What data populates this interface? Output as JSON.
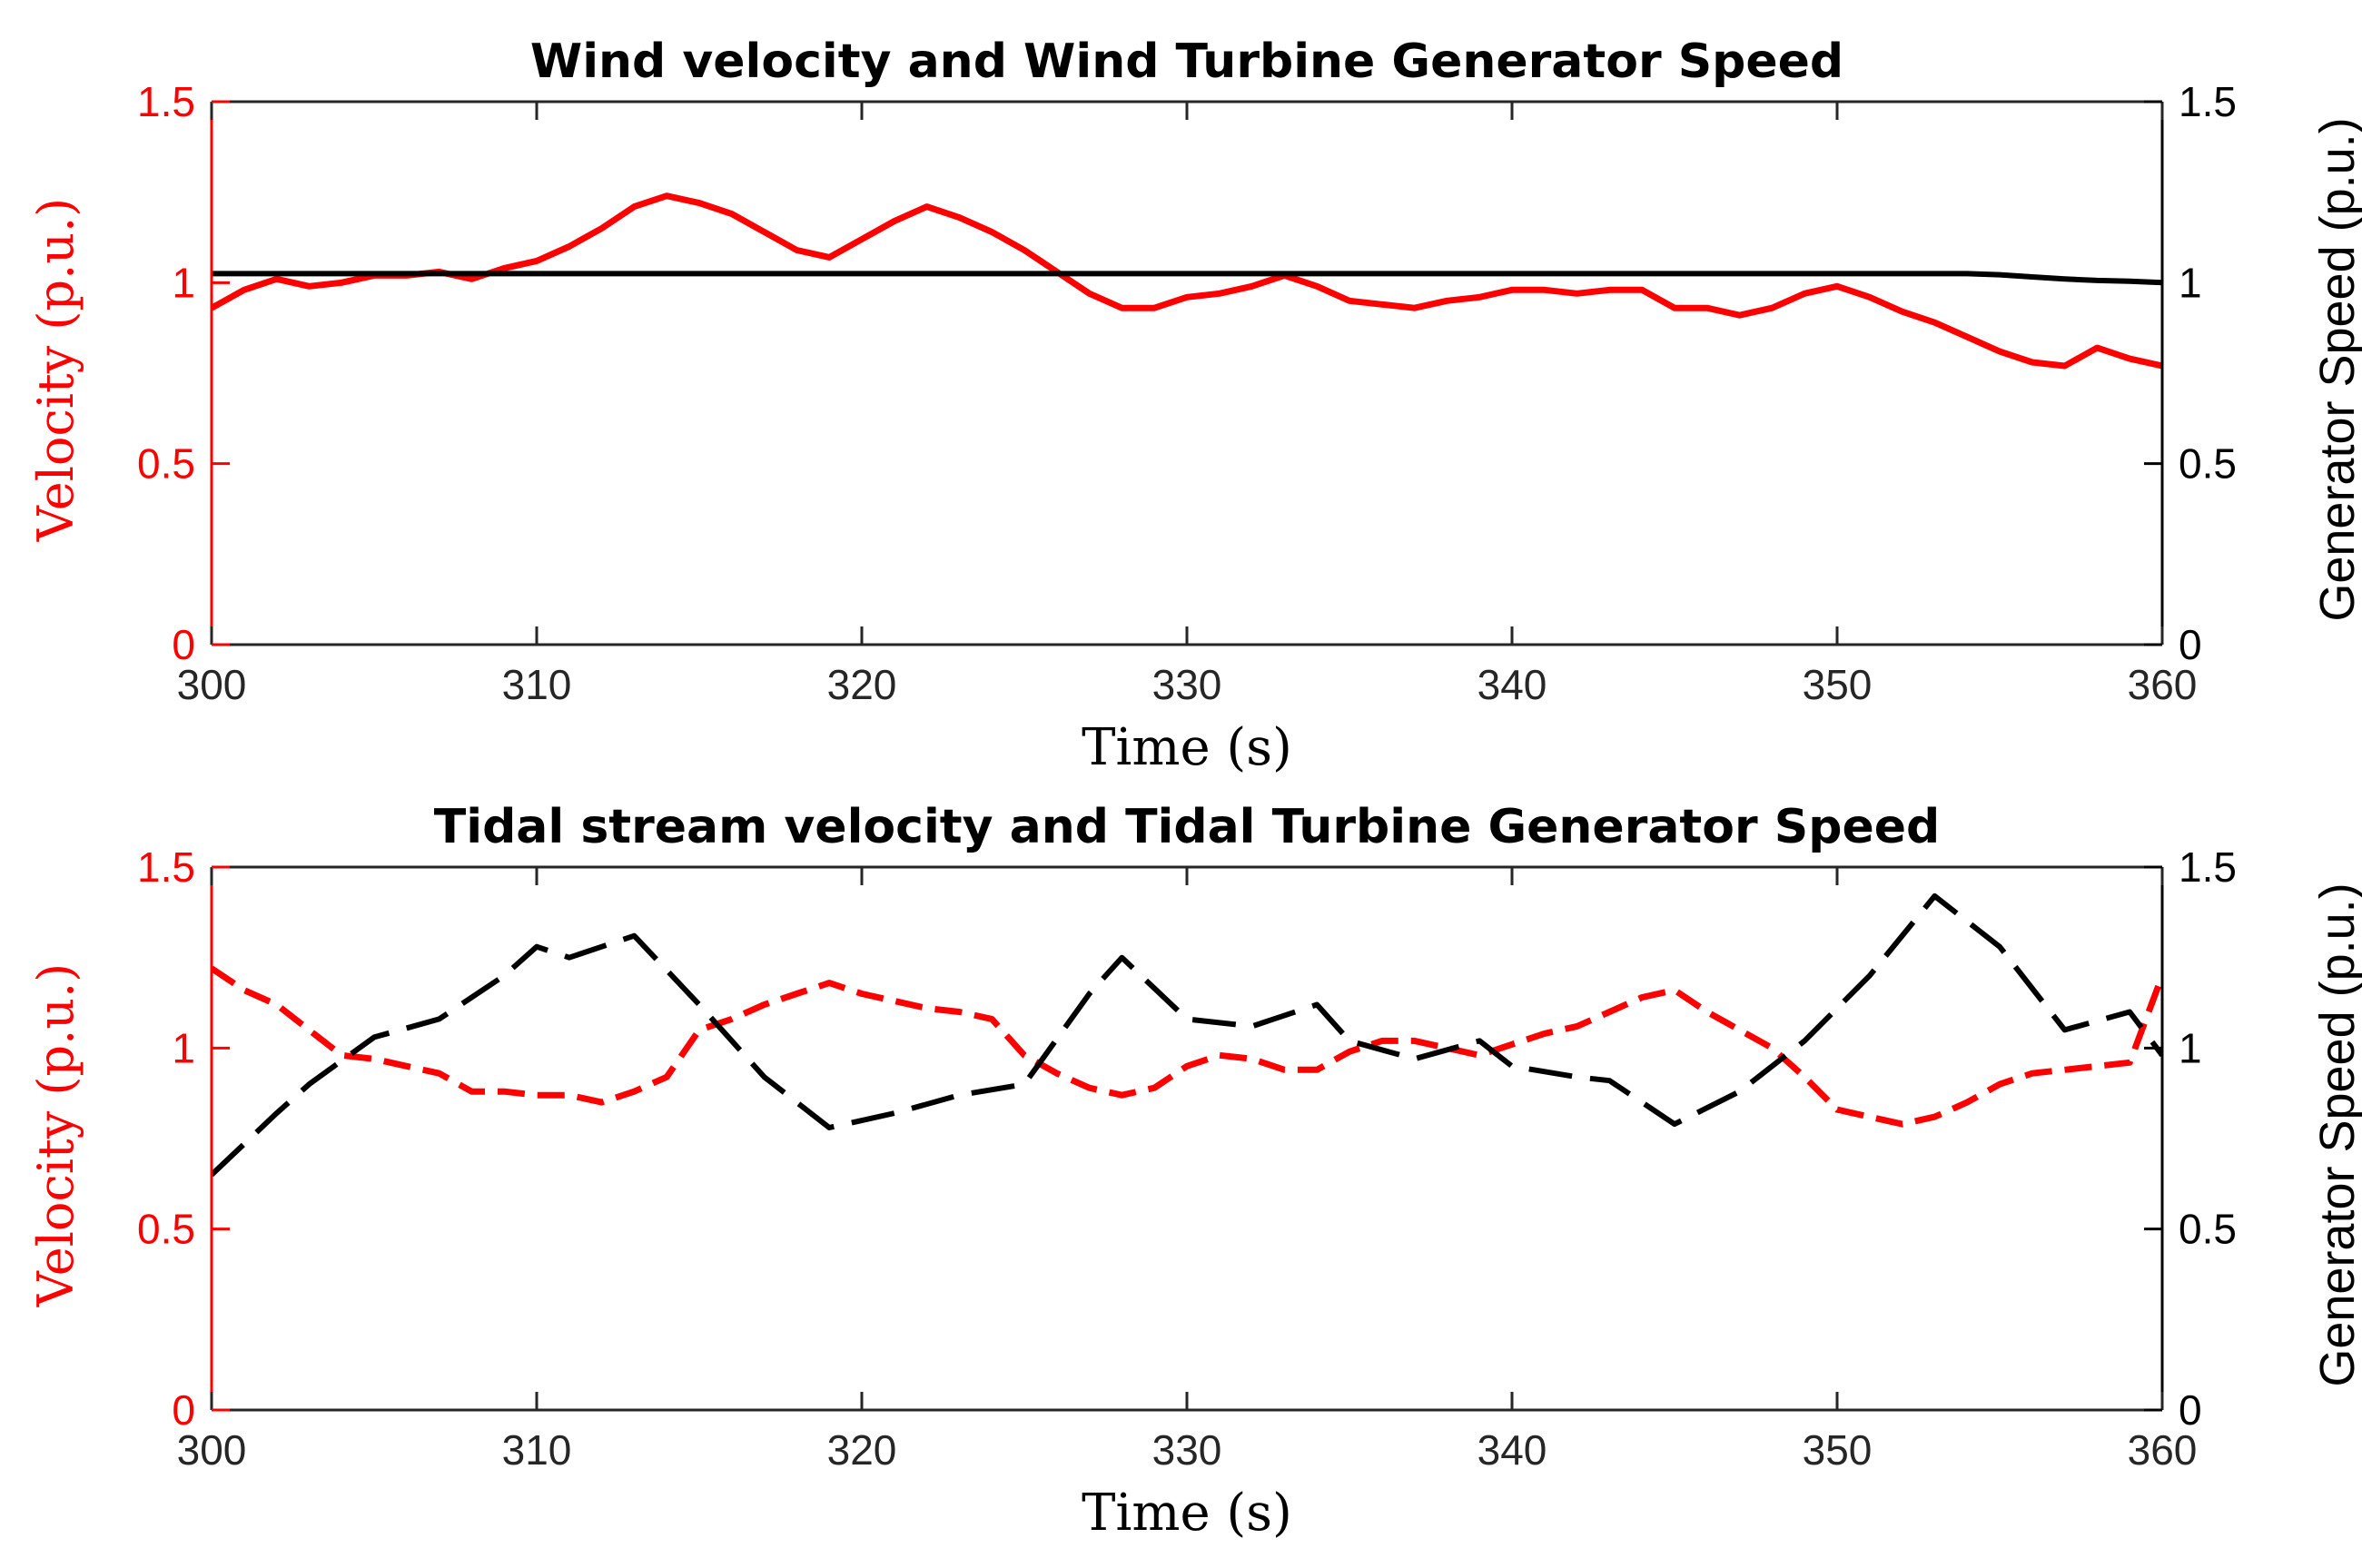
{
  "chart_data": [
    {
      "type": "line",
      "title": "Wind velocity and Wind Turbine Generator Speed",
      "xlabel": "Time (s)",
      "ylabel": "Velocity (p.u.)",
      "ylabel_right": "Generator Speed (p.u.)",
      "xlim": [
        300,
        360
      ],
      "ylim": [
        0,
        1.5
      ],
      "ylim_right": [
        0,
        1.5
      ],
      "xticks": [
        300,
        310,
        320,
        330,
        340,
        350,
        360
      ],
      "yticks": [
        0,
        0.5,
        1,
        1.5
      ],
      "yticks_right": [
        0,
        0.5,
        1,
        1.5
      ],
      "xtick_labels": [
        "300",
        "310",
        "320",
        "330",
        "340",
        "350",
        "360"
      ],
      "ytick_labels": [
        "0",
        "0.5",
        "1",
        "1.5"
      ],
      "ytick_labels_right": [
        "0",
        "0.5",
        "1",
        "1.5"
      ],
      "grid": false,
      "colors": {
        "left": "#ff0000",
        "right": "#000000"
      },
      "series": [
        {
          "name": "Wind velocity",
          "axis": "left",
          "style": "solid",
          "color": "#ff0000",
          "x": [
            300,
            301,
            302,
            303,
            304,
            305,
            306,
            307,
            308,
            309,
            310,
            311,
            312,
            313,
            314,
            315,
            316,
            317,
            318,
            319,
            320,
            321,
            322,
            323,
            324,
            325,
            326,
            327,
            328,
            329,
            330,
            331,
            332,
            333,
            334,
            335,
            336,
            337,
            338,
            339,
            340,
            341,
            342,
            343,
            344,
            345,
            346,
            347,
            348,
            349,
            350,
            351,
            352,
            353,
            354,
            355,
            356,
            357,
            358,
            359,
            360
          ],
          "values": [
            0.93,
            0.98,
            1.01,
            0.99,
            1.0,
            1.02,
            1.02,
            1.03,
            1.01,
            1.04,
            1.06,
            1.1,
            1.15,
            1.21,
            1.24,
            1.22,
            1.19,
            1.14,
            1.09,
            1.07,
            1.12,
            1.17,
            1.21,
            1.18,
            1.14,
            1.09,
            1.03,
            0.97,
            0.93,
            0.93,
            0.96,
            0.97,
            0.99,
            1.02,
            0.99,
            0.95,
            0.94,
            0.93,
            0.95,
            0.96,
            0.98,
            0.98,
            0.97,
            0.98,
            0.98,
            0.93,
            0.93,
            0.91,
            0.93,
            0.97,
            0.99,
            0.96,
            0.92,
            0.89,
            0.85,
            0.81,
            0.78,
            0.77,
            0.82,
            0.79,
            0.77
          ]
        },
        {
          "name": "Wind Turbine Generator Speed",
          "axis": "right",
          "style": "solid",
          "color": "#000000",
          "x": [
            300,
            354,
            355,
            356,
            357,
            358,
            359,
            360
          ],
          "values": [
            1.025,
            1.025,
            1.022,
            1.016,
            1.01,
            1.006,
            1.004,
            1.0
          ]
        }
      ]
    },
    {
      "type": "line",
      "title": "Tidal stream velocity and Tidal Turbine Generator Speed",
      "xlabel": "Time (s)",
      "ylabel": "Velocity (p.u.)",
      "ylabel_right": "Generator Speed (p.u.)",
      "xlim": [
        300,
        360
      ],
      "ylim": [
        0,
        1.5
      ],
      "ylim_right": [
        0,
        1.5
      ],
      "xticks": [
        300,
        310,
        320,
        330,
        340,
        350,
        360
      ],
      "yticks": [
        0,
        0.5,
        1,
        1.5
      ],
      "yticks_right": [
        0,
        0.5,
        1,
        1.5
      ],
      "xtick_labels": [
        "300",
        "310",
        "320",
        "330",
        "340",
        "350",
        "360"
      ],
      "ytick_labels": [
        "0",
        "0.5",
        "1",
        "1.5"
      ],
      "ytick_labels_right": [
        "0",
        "0.5",
        "1",
        "1.5"
      ],
      "grid": false,
      "colors": {
        "left": "#ff0000",
        "right": "#000000"
      },
      "series": [
        {
          "name": "Tidal stream velocity",
          "axis": "left",
          "style": "dashed",
          "color": "#ff0000",
          "x": [
            300,
            301,
            302,
            303,
            304,
            305,
            306,
            307,
            308,
            309,
            310,
            311,
            312,
            313,
            314,
            315,
            316,
            317,
            318,
            319,
            320,
            321,
            322,
            323,
            324,
            325,
            326,
            327,
            328,
            329,
            330,
            331,
            332,
            333,
            334,
            335,
            336,
            337,
            338,
            339,
            340,
            341,
            342,
            343,
            344,
            345,
            346,
            347,
            348,
            349,
            350,
            351,
            352,
            353,
            354,
            355,
            356,
            357,
            358,
            359,
            360
          ],
          "values": [
            1.22,
            1.16,
            1.12,
            1.05,
            0.98,
            0.97,
            0.95,
            0.93,
            0.88,
            0.88,
            0.87,
            0.87,
            0.85,
            0.88,
            0.92,
            1.05,
            1.08,
            1.12,
            1.15,
            1.18,
            1.15,
            1.13,
            1.11,
            1.1,
            1.08,
            0.98,
            0.93,
            0.89,
            0.87,
            0.89,
            0.95,
            0.98,
            0.97,
            0.94,
            0.94,
            0.99,
            1.02,
            1.02,
            1.0,
            0.98,
            1.01,
            1.04,
            1.06,
            1.1,
            1.14,
            1.16,
            1.1,
            1.05,
            1.0,
            0.92,
            0.83,
            0.81,
            0.79,
            0.81,
            0.85,
            0.9,
            0.93,
            0.94,
            0.95,
            0.96,
            1.2
          ]
        },
        {
          "name": "Tidal Turbine Generator Speed",
          "axis": "right",
          "style": "dashed",
          "color": "#000000",
          "x": [
            300,
            302,
            303,
            305,
            307,
            309,
            310,
            311,
            313,
            315,
            317,
            319,
            321,
            323,
            325,
            327,
            328,
            330,
            332,
            334,
            335,
            337,
            339,
            340,
            342,
            343,
            345,
            347,
            349,
            351,
            353,
            355,
            357,
            359,
            360
          ],
          "values": [
            0.65,
            0.82,
            0.9,
            1.03,
            1.08,
            1.2,
            1.28,
            1.25,
            1.31,
            1.12,
            0.92,
            0.78,
            0.82,
            0.87,
            0.9,
            1.15,
            1.25,
            1.08,
            1.06,
            1.12,
            1.02,
            0.97,
            1.02,
            0.95,
            0.92,
            0.91,
            0.79,
            0.88,
            1.02,
            1.2,
            1.42,
            1.28,
            1.05,
            1.1,
            0.98
          ]
        }
      ]
    }
  ]
}
